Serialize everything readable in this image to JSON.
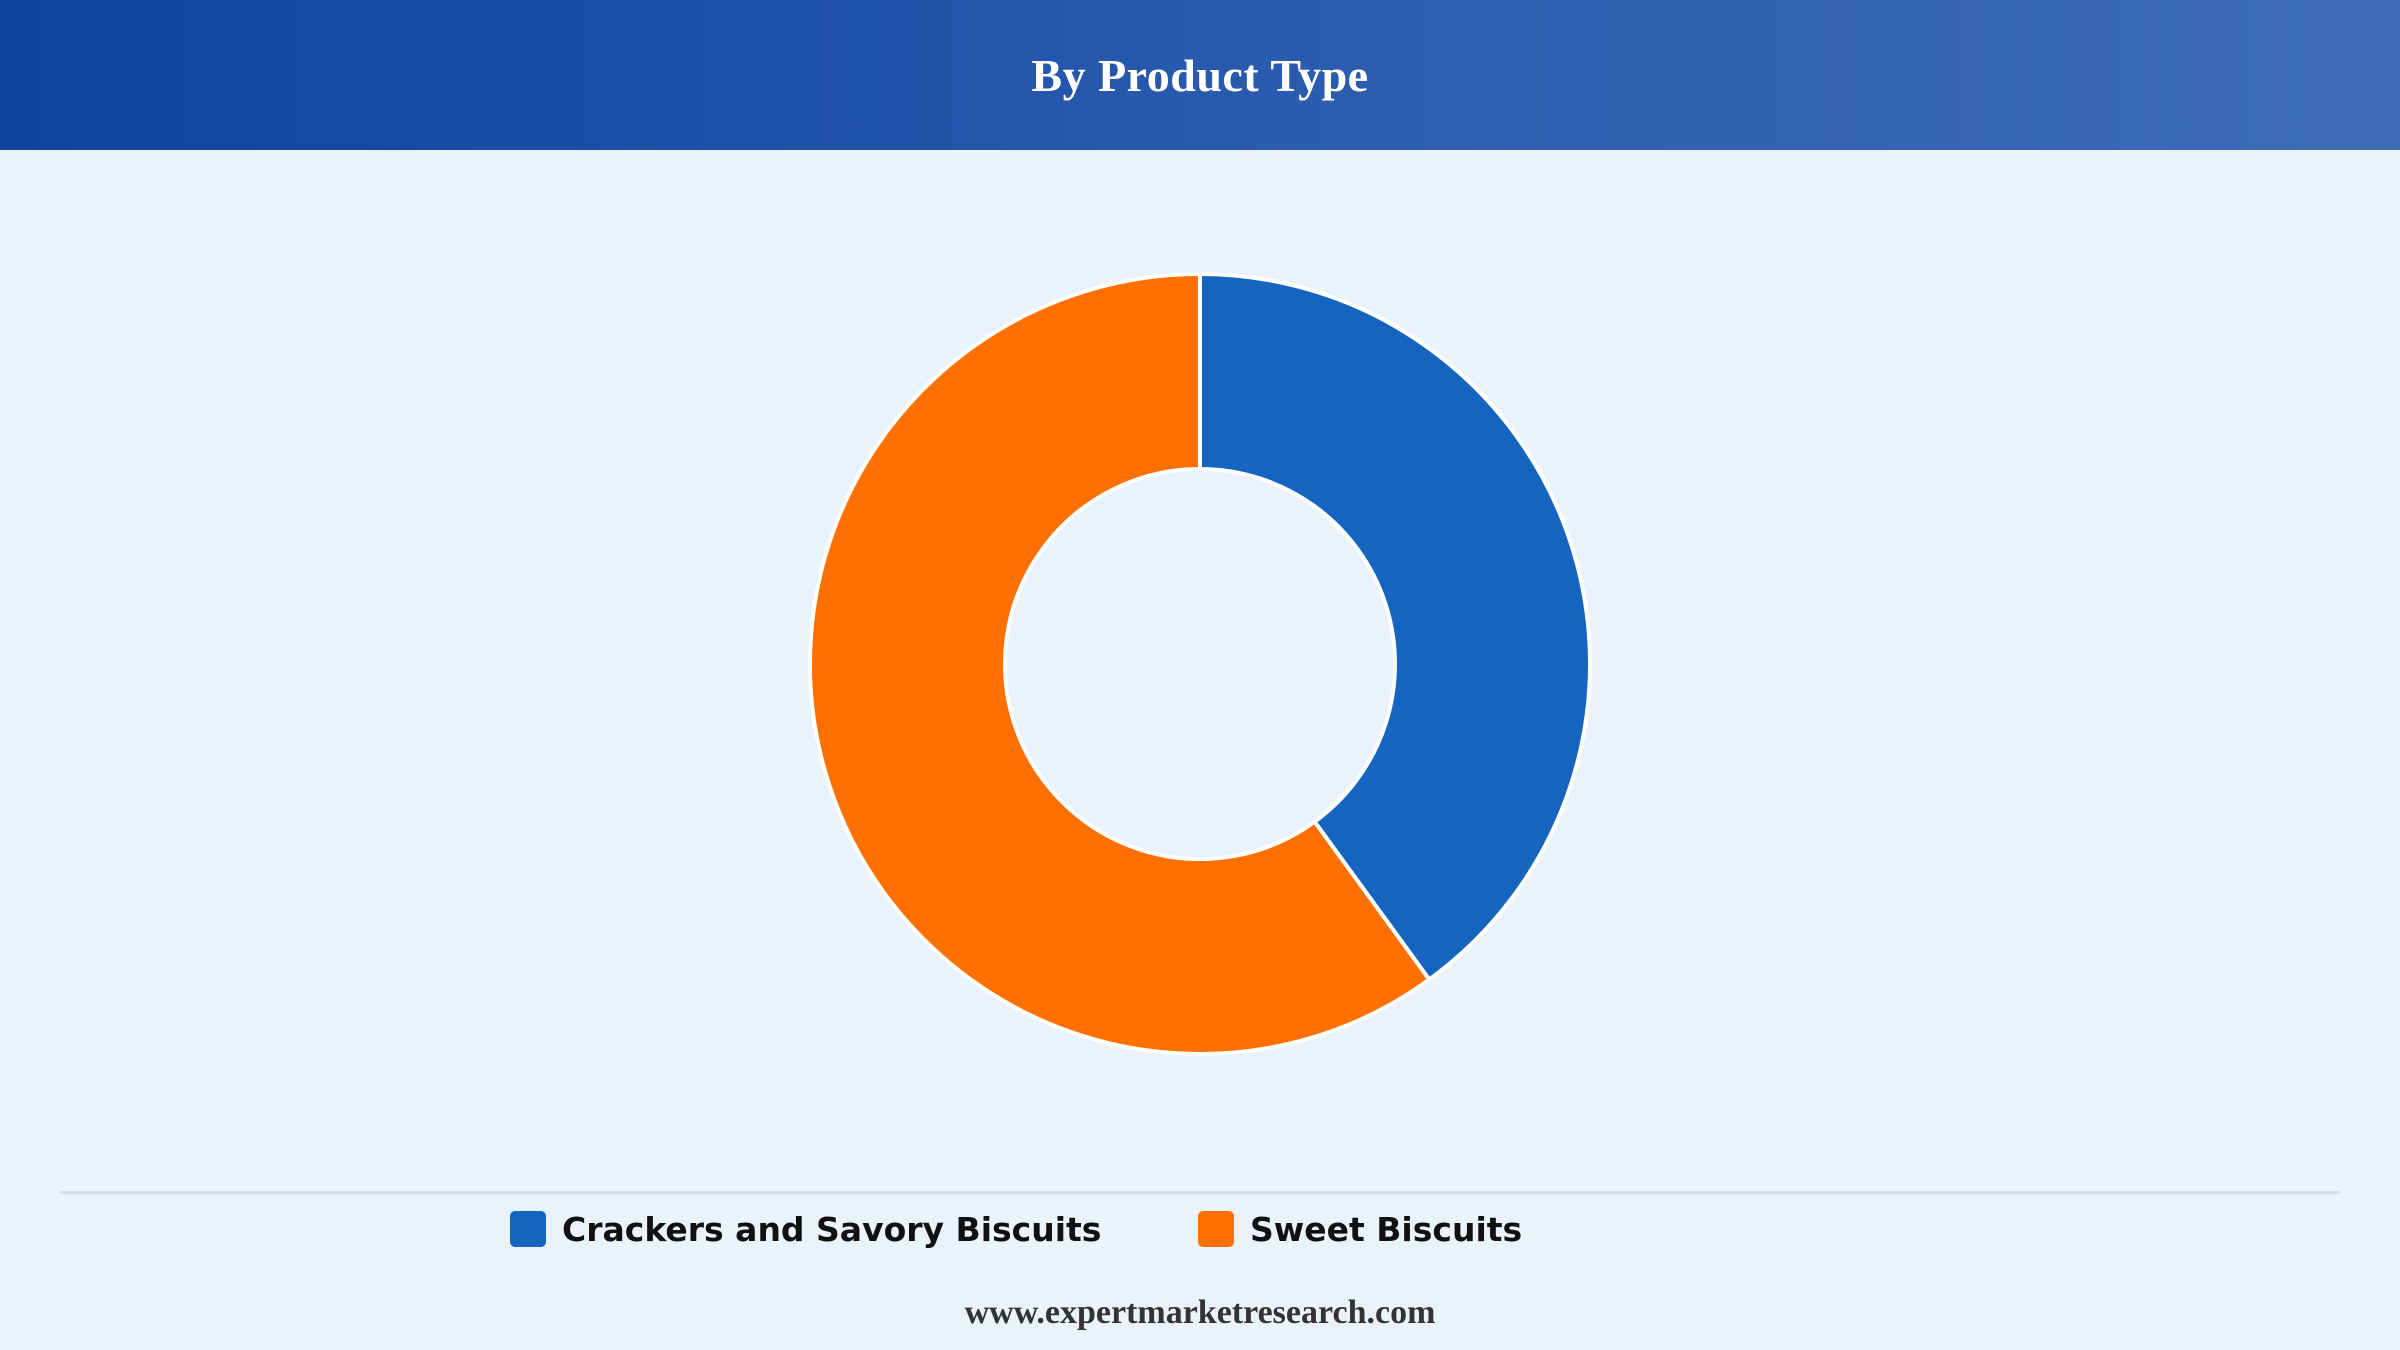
{
  "header": {
    "title": "By Product Type"
  },
  "chart_data": {
    "type": "pie",
    "style": "donut",
    "categories": [
      "Crackers and Savory Biscuits",
      "Sweet Biscuits"
    ],
    "values": [
      40,
      60
    ],
    "colors": [
      "#1565c0",
      "#ff7000"
    ],
    "legend_placement": "bottom",
    "data_labels_shown": false
  },
  "legend": {
    "items": [
      {
        "label": "Crackers and Savory Biscuits",
        "color": "#1565c0"
      },
      {
        "label": "Sweet Biscuits",
        "color": "#ff7000"
      }
    ]
  },
  "footer": {
    "website": "www.expertmarketresearch.com"
  }
}
